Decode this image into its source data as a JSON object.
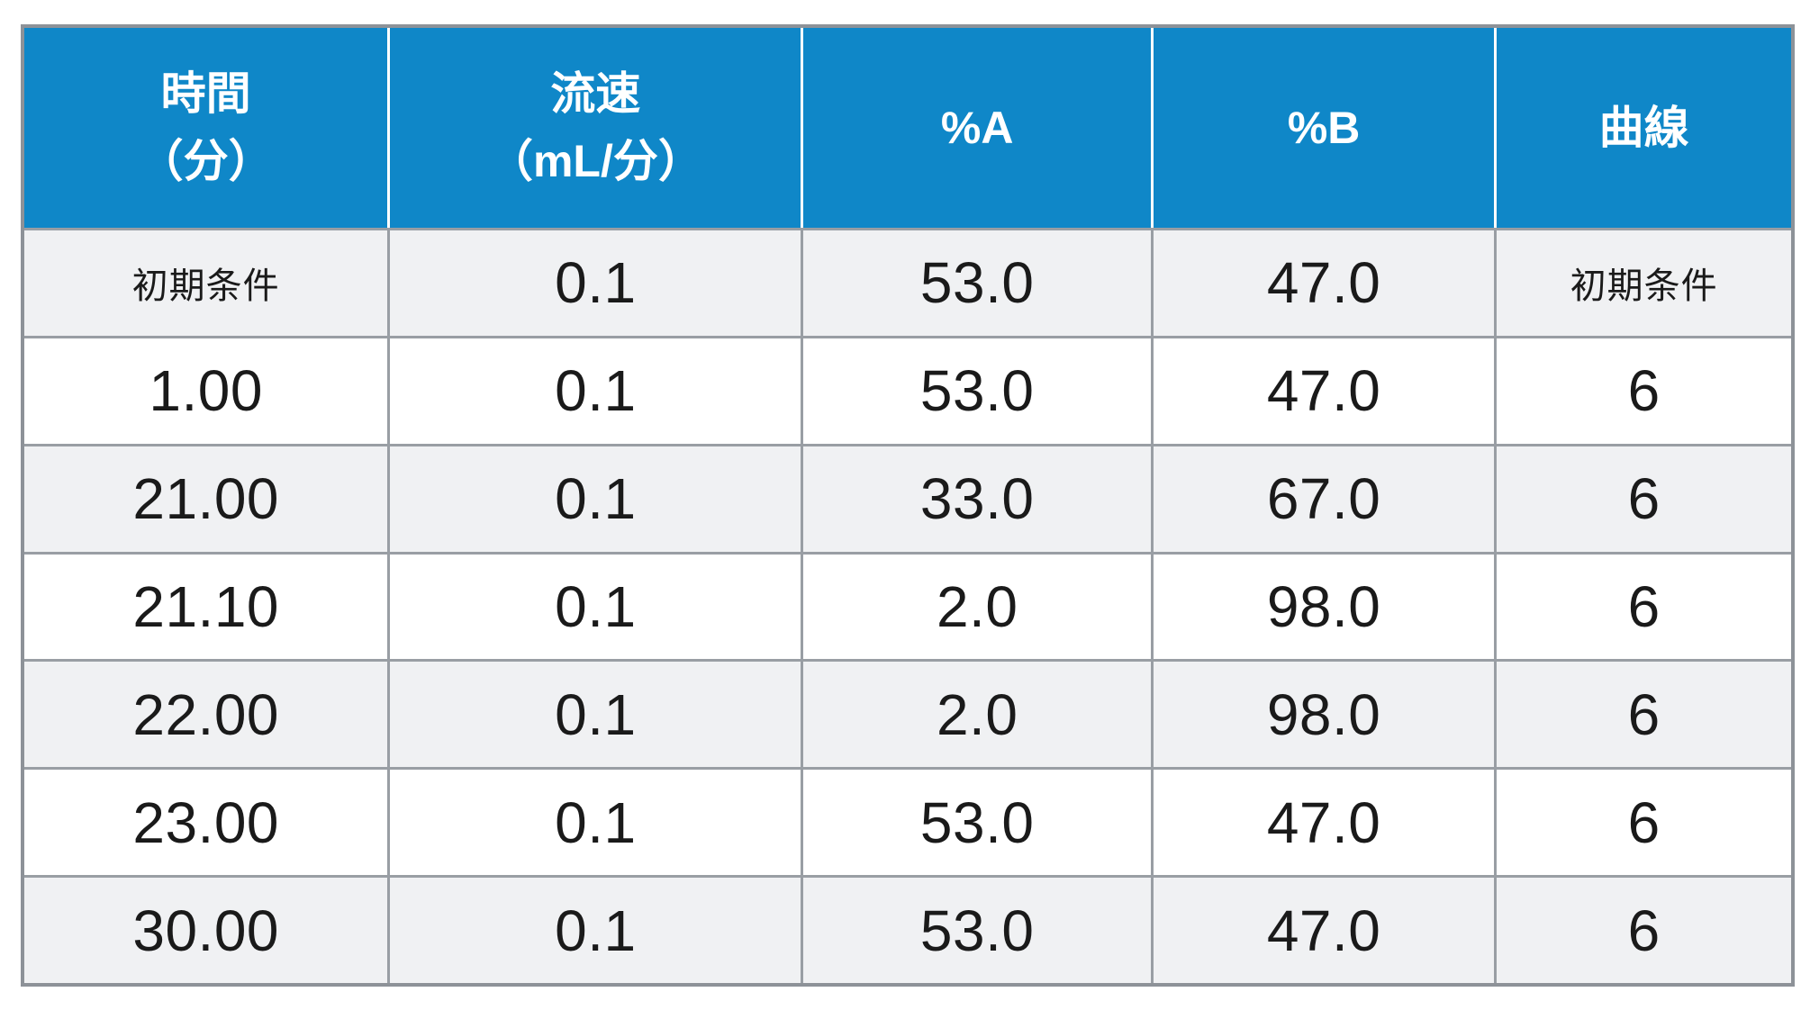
{
  "colors": {
    "header_bg": "#0f87c8",
    "header_text": "#ffffff",
    "row_alt_bg": "#f0f1f3",
    "row_bg": "#ffffff",
    "grid_border": "#999ea4",
    "outer_border": "#8d9298",
    "body_text": "#1a1a1a",
    "header_separator": "#ffffff"
  },
  "header": {
    "columns": [
      {
        "line1": "時間",
        "line2": "（分）"
      },
      {
        "line1": "流速",
        "line2": "（mL/分）"
      },
      {
        "line1": "%A",
        "line2": ""
      },
      {
        "line1": "%B",
        "line2": ""
      },
      {
        "line1": "曲線",
        "line2": ""
      }
    ]
  },
  "rows": [
    [
      "初期条件",
      "0.1",
      "53.0",
      "47.0",
      "初期条件"
    ],
    [
      "1.00",
      "0.1",
      "53.0",
      "47.0",
      "6"
    ],
    [
      "21.00",
      "0.1",
      "33.0",
      "67.0",
      "6"
    ],
    [
      "21.10",
      "0.1",
      "2.0",
      "98.0",
      "6"
    ],
    [
      "22.00",
      "0.1",
      "2.0",
      "98.0",
      "6"
    ],
    [
      "23.00",
      "0.1",
      "53.0",
      "47.0",
      "6"
    ],
    [
      "30.00",
      "0.1",
      "53.0",
      "47.0",
      "6"
    ]
  ]
}
